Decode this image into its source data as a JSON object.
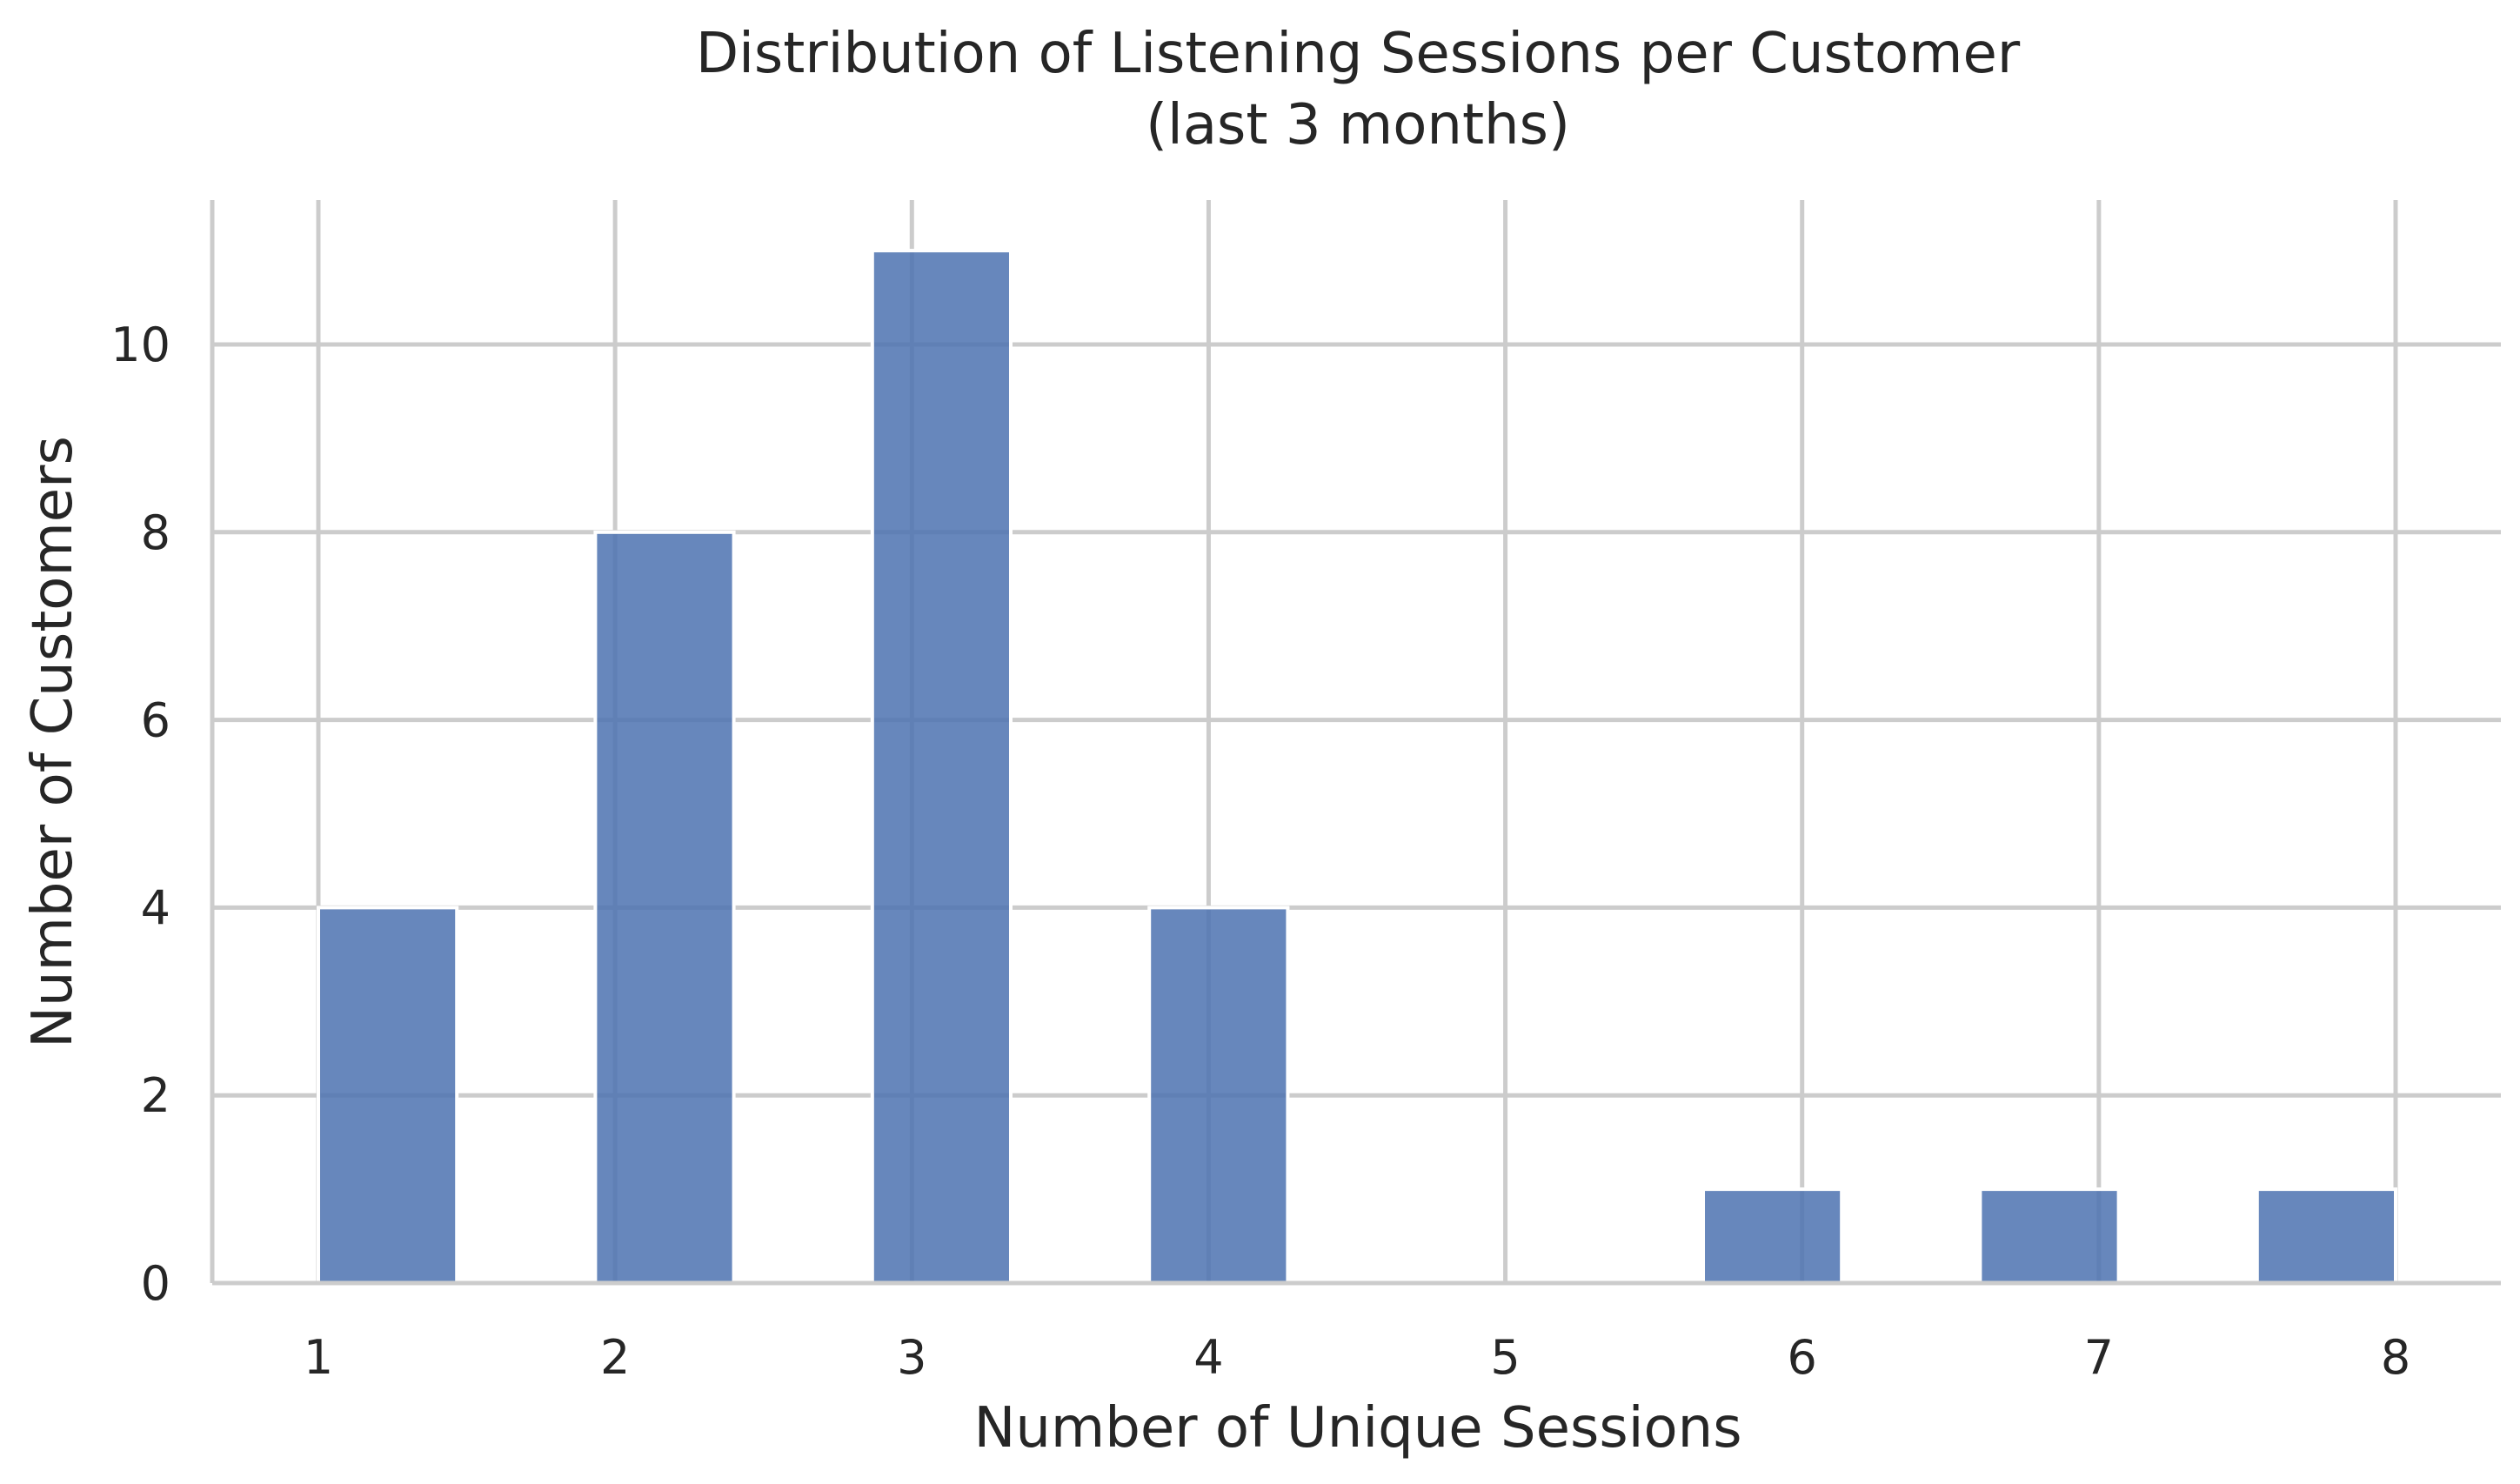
{
  "chart_data": {
    "type": "bar",
    "title": "Distribution of Listening Sessions per Customer",
    "subtitle": "(last 3 months)",
    "xlabel": "Number of Unique Sessions",
    "ylabel": "Number of Customers",
    "xticks": [
      "1",
      "2",
      "3",
      "4",
      "5",
      "6",
      "7",
      "8"
    ],
    "yticks": [
      "0",
      "2",
      "4",
      "6",
      "8",
      "10"
    ],
    "xlim": [
      0.65,
      8.2
    ],
    "ylim": [
      0,
      11.55
    ],
    "grid": true,
    "bar_color": "#4c72b0",
    "bins": [
      {
        "x_start": 1.0,
        "x_end": 1.4667,
        "value": 4
      },
      {
        "x_start": 1.9333,
        "x_end": 2.4,
        "value": 8
      },
      {
        "x_start": 2.8667,
        "x_end": 3.3333,
        "value": 11
      },
      {
        "x_start": 3.8,
        "x_end": 4.2667,
        "value": 4
      },
      {
        "x_start": 5.6667,
        "x_end": 6.1333,
        "value": 1
      },
      {
        "x_start": 6.6,
        "x_end": 7.0667,
        "value": 1
      },
      {
        "x_start": 7.5333,
        "x_end": 8.0,
        "value": 1
      }
    ]
  }
}
